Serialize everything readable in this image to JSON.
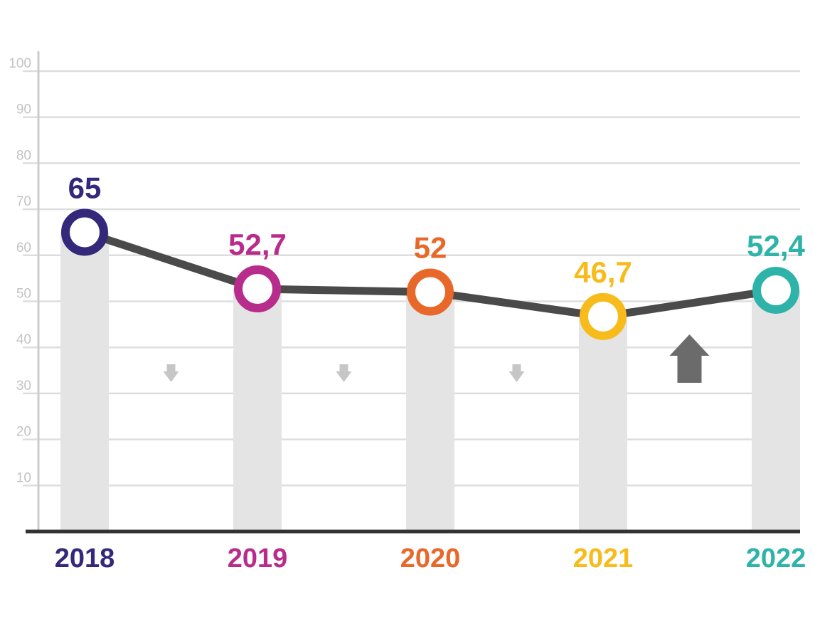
{
  "chart_data": {
    "type": "line",
    "categories": [
      "2018",
      "2019",
      "2020",
      "2021",
      "2022"
    ],
    "values": [
      65,
      52.7,
      52,
      46.7,
      52.4
    ],
    "value_labels": [
      "65",
      "52,7",
      "52",
      "46,7",
      "52,4"
    ],
    "colors": [
      "#33287a",
      "#b82d8c",
      "#e8682a",
      "#f7bc1c",
      "#2eb3a9"
    ],
    "line_color": "#4a4a4a",
    "bar_color": "#e4e4e4",
    "grid_color": "#dddddd",
    "yticks": [
      "10",
      "20",
      "30",
      "40",
      "50",
      "60",
      "70",
      "80",
      "90",
      "100"
    ],
    "ylim": [
      0,
      100
    ],
    "grid": true,
    "trend_arrows": [
      "down",
      "down",
      "down",
      "up"
    ],
    "trend_arrow_colors": [
      "#c6c6c6",
      "#c6c6c6",
      "#c6c6c6",
      "#6b6b6b"
    ]
  }
}
